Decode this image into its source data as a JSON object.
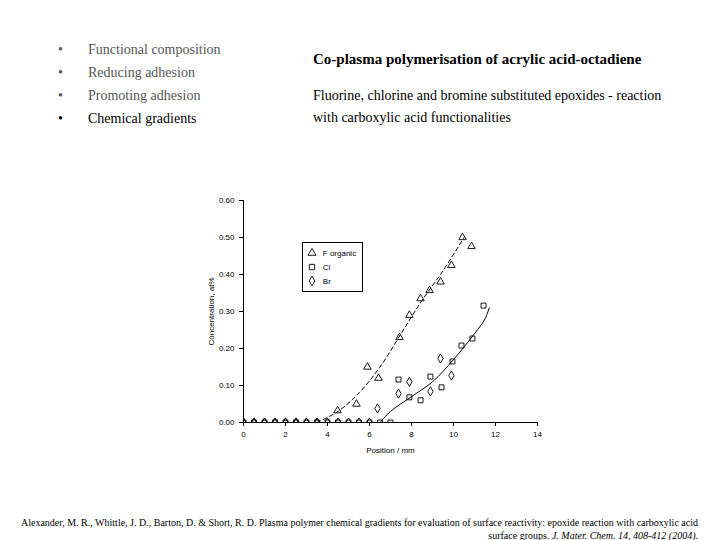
{
  "slide": {
    "bullets": [
      "Functional composition",
      "Reducing adhesion",
      "Promoting adhesion",
      "Chemical gradients"
    ],
    "heading": "Co-plasma polymerisation of acrylic acid-octadiene",
    "subheading": "Fluorine, chlorine and bromine substituted epoxides - reaction with carboxylic acid functionalities",
    "citation": {
      "text": "Alexander, M. R., Whittle, J. D., Barton, D. & Short, R. D. Plasma polymer chemical gradients for evaluation of surface reactivity: epoxide reaction with carboxylic acid surface groups.",
      "journal": "J. Mater. Chem. 14, 408-412 (2004)."
    }
  },
  "chart_data": {
    "type": "scatter",
    "x_label": "Position / mm",
    "y_label": "Concentration, at%",
    "xlim": [
      0,
      14
    ],
    "xticks": [
      0,
      2,
      4,
      6,
      8,
      10,
      12,
      14
    ],
    "ylim": [
      0,
      0.6
    ],
    "yticks": [
      0,
      0.1,
      0.2,
      0.3,
      0.4,
      0.5,
      0.6
    ],
    "legend": "upper left",
    "series": [
      {
        "name": "F organic",
        "color": "#000000",
        "marker": "triangle",
        "x": [
          0,
          0.5,
          1,
          1.5,
          2,
          2.5,
          3,
          3.5,
          4.48,
          5.38,
          5.9,
          6.43,
          7.43,
          7.9,
          8.43,
          8.86,
          9.38,
          9.9,
          10.43,
          10.86
        ],
        "values": [
          0,
          0,
          0,
          0,
          0,
          0,
          0,
          0,
          0.032,
          0.05,
          0.15,
          0.12,
          0.23,
          0.29,
          0.335,
          0.357,
          0.38,
          0.425,
          0.5,
          0.476
        ]
      },
      {
        "name": "Cl",
        "color": "#000000",
        "marker": "square",
        "x": [
          0,
          0.5,
          1,
          1.5,
          2,
          2.5,
          3,
          3.5,
          4,
          4.5,
          5,
          5.5,
          6,
          6.5,
          7,
          7.38,
          7.9,
          8.43,
          8.9,
          9.43,
          9.95,
          10.38,
          10.9,
          11.43
        ],
        "values": [
          0,
          0,
          0,
          0,
          0,
          0,
          0,
          0,
          0,
          0,
          0,
          0,
          0,
          0,
          0,
          0.116,
          0.068,
          0.06,
          0.124,
          0.095,
          0.165,
          0.208,
          0.227,
          0.316
        ]
      },
      {
        "name": "Br",
        "color": "#000000",
        "marker": "diamond",
        "x": [
          0,
          0.5,
          1,
          1.5,
          2,
          2.5,
          3,
          3.5,
          4,
          4.5,
          5,
          5.5,
          6,
          6.38,
          7.38,
          7.9,
          8.9,
          9.38,
          9.9
        ],
        "values": [
          0,
          0,
          0,
          0,
          0,
          0,
          0,
          0,
          0,
          0,
          0,
          0,
          0,
          0.038,
          0.078,
          0.11,
          0.084,
          0.173,
          0.127
        ]
      }
    ],
    "trend_lines": [
      {
        "color": "#000000",
        "line_style": "dashed",
        "x": [
          3.5,
          4.5,
          5.5,
          6.5,
          7.5,
          8.5,
          9.5,
          10.5
        ],
        "values": [
          0,
          0.03,
          0.08,
          0.15,
          0.24,
          0.33,
          0.41,
          0.5
        ]
      },
      {
        "color": "#000000",
        "line_style": "solid",
        "x": [
          6.5,
          7,
          8,
          9,
          10,
          11,
          11.5,
          11.7
        ],
        "values": [
          0,
          0.03,
          0.07,
          0.11,
          0.17,
          0.24,
          0.28,
          0.31
        ]
      }
    ]
  }
}
